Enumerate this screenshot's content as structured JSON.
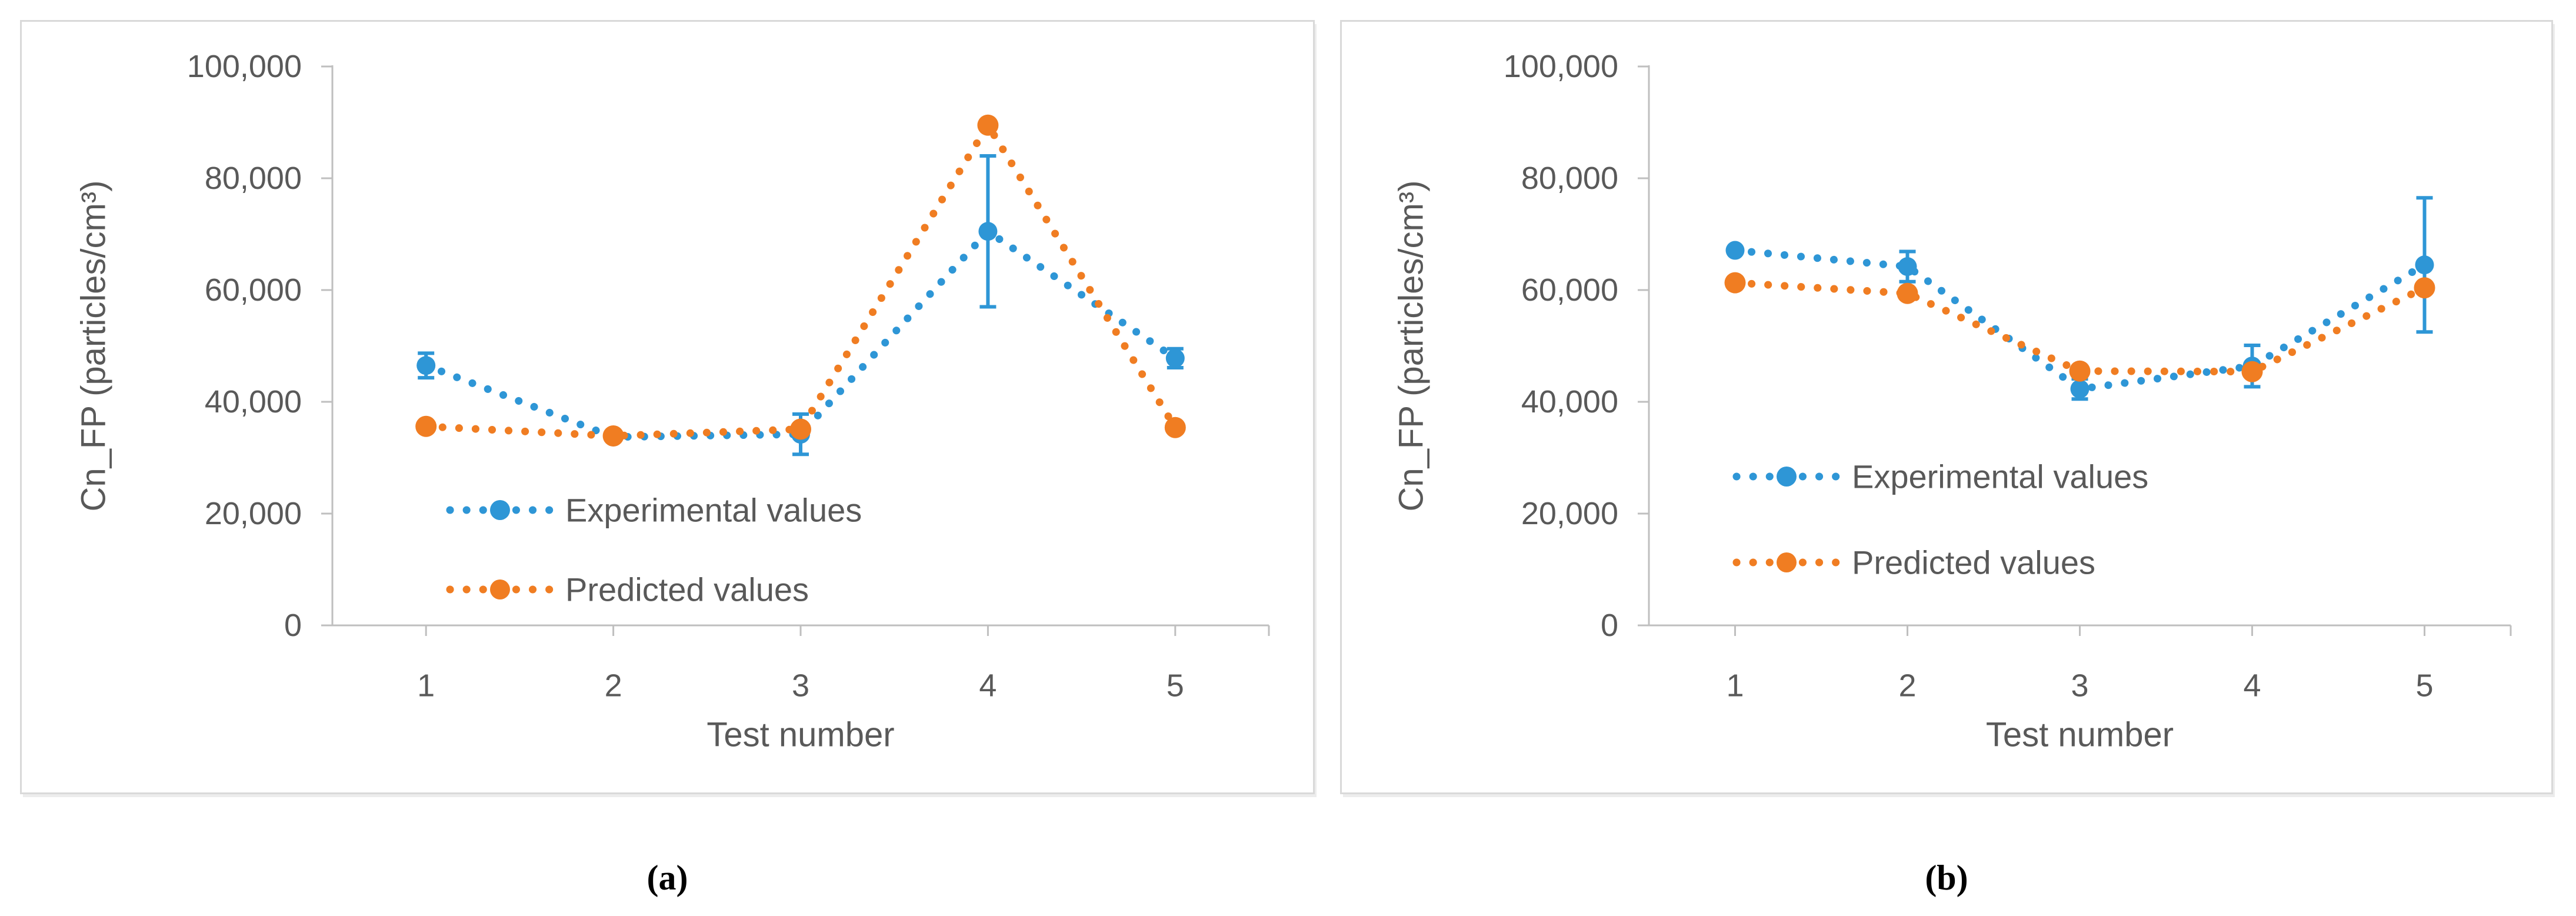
{
  "figure": {
    "background": "#FFFFFF",
    "captions": {
      "a": "(a)",
      "b": "(b)"
    }
  },
  "colors": {
    "experimental_blue": "#2E96D6",
    "predicted_orange": "#F07D22",
    "axis_line": "#BFBFBF",
    "axis_text": "#595959",
    "panel_border": "#D9D9D9"
  },
  "chart_data": [
    {
      "type": "line",
      "panel": "a",
      "caption": "(a)",
      "xlabel": "Test number",
      "ylabel": "Cn_FP (particles/cm³)",
      "x": [
        1,
        2,
        3,
        4,
        5
      ],
      "xtick_labels": [
        "1",
        "2",
        "3",
        "4",
        "5"
      ],
      "ylim": [
        0,
        100000
      ],
      "yticks": [
        0,
        20000,
        40000,
        60000,
        80000,
        100000
      ],
      "ytick_labels": [
        "0",
        "20,000",
        "40,000",
        "60,000",
        "80,000",
        "100,000"
      ],
      "grid": false,
      "legend_position": "inside-lower-left",
      "series": [
        {
          "name": "Experimental values",
          "color": "#2E96D6",
          "marker": "circle",
          "line_style": "dotted",
          "values": [
            46500,
            33700,
            34200,
            70500,
            47800
          ],
          "error": [
            2200,
            0,
            3600,
            13500,
            1700
          ]
        },
        {
          "name": "Predicted values",
          "color": "#F07D22",
          "marker": "circle",
          "line_style": "dotted",
          "values": [
            35600,
            33900,
            35100,
            89500,
            35400
          ],
          "error": [
            0,
            0,
            0,
            0,
            0
          ]
        }
      ]
    },
    {
      "type": "line",
      "panel": "b",
      "caption": "(b)",
      "xlabel": "Test number",
      "ylabel": "Cn_FP (particles/cm³)",
      "x": [
        1,
        2,
        3,
        4,
        5
      ],
      "xtick_labels": [
        "1",
        "2",
        "3",
        "4",
        "5"
      ],
      "ylim": [
        0,
        100000
      ],
      "yticks": [
        0,
        20000,
        40000,
        60000,
        80000,
        100000
      ],
      "ytick_labels": [
        "0",
        "20,000",
        "40,000",
        "60,000",
        "80,000",
        "100,000"
      ],
      "grid": false,
      "legend_position": "inside-lower-left",
      "series": [
        {
          "name": "Experimental values",
          "color": "#2E96D6",
          "marker": "circle",
          "line_style": "dotted",
          "values": [
            67100,
            64200,
            42300,
            46400,
            64500
          ],
          "error": [
            0,
            2700,
            1800,
            3700,
            12000
          ]
        },
        {
          "name": "Predicted values",
          "color": "#F07D22",
          "marker": "circle",
          "line_style": "dotted",
          "values": [
            61300,
            59400,
            45500,
            45400,
            60400
          ],
          "error": [
            0,
            0,
            0,
            0,
            0
          ]
        }
      ]
    }
  ]
}
